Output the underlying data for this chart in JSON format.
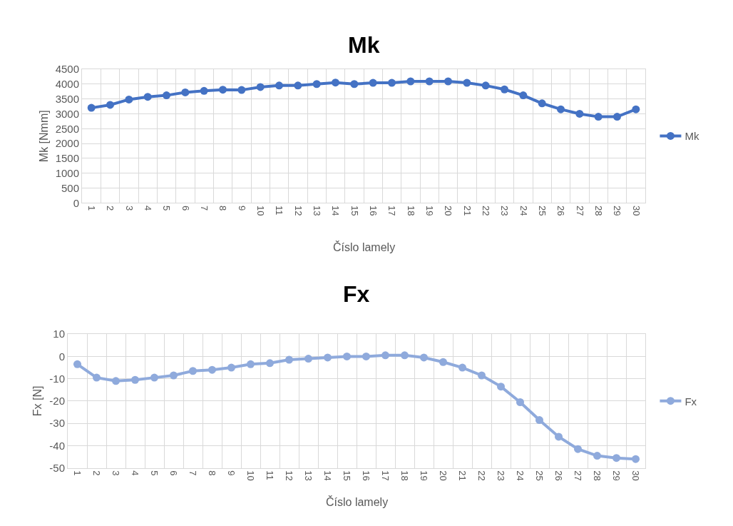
{
  "chart_data": [
    {
      "type": "line",
      "title": "Mk",
      "xlabel": "Číslo lamely",
      "ylabel": "Mk [Nmm]",
      "categories": [
        "1",
        "2",
        "3",
        "4",
        "5",
        "6",
        "7",
        "8",
        "9",
        "10",
        "11",
        "12",
        "13",
        "14",
        "15",
        "16",
        "17",
        "18",
        "19",
        "20",
        "21",
        "22",
        "23",
        "24",
        "25",
        "26",
        "27",
        "28",
        "29",
        "30"
      ],
      "series": [
        {
          "name": "Mk",
          "color": "#4472c4",
          "values": [
            3200,
            3300,
            3480,
            3570,
            3620,
            3720,
            3770,
            3810,
            3800,
            3900,
            3950,
            3950,
            4000,
            4050,
            4000,
            4040,
            4040,
            4090,
            4090,
            4090,
            4040,
            3950,
            3820,
            3620,
            3350,
            3150,
            3000,
            2900,
            2900,
            3150
          ]
        }
      ],
      "ylim": [
        0,
        4500
      ],
      "yticks": [
        0,
        500,
        1000,
        1500,
        2000,
        2500,
        3000,
        3500,
        4000,
        4500
      ],
      "grid": true,
      "legend": "right",
      "marker": "circle",
      "line_style": "solid"
    },
    {
      "type": "line",
      "title": "Fx",
      "xlabel": "Číslo lamely",
      "ylabel": "Fx [N]",
      "categories": [
        "1",
        "2",
        "3",
        "4",
        "5",
        "6",
        "7",
        "8",
        "9",
        "10",
        "11",
        "12",
        "13",
        "14",
        "15",
        "16",
        "17",
        "18",
        "19",
        "20",
        "21",
        "22",
        "23",
        "24",
        "25",
        "26",
        "27",
        "28",
        "29",
        "30"
      ],
      "series": [
        {
          "name": "Fx",
          "color": "#8faadc",
          "values": [
            -3.5,
            -9.5,
            -11,
            -10.5,
            -9.5,
            -8.5,
            -6.5,
            -6,
            -5,
            -3.5,
            -3,
            -1.5,
            -1,
            -0.5,
            0,
            0,
            0.5,
            0.5,
            -0.5,
            -2.5,
            -5,
            -8.5,
            -13.5,
            -20.5,
            -28.5,
            -36,
            -41.5,
            -44.5,
            -45.5,
            -46
          ]
        }
      ],
      "ylim": [
        -50,
        10
      ],
      "yticks": [
        -50,
        -40,
        -30,
        -20,
        -10,
        0,
        10
      ],
      "grid": true,
      "legend": "right",
      "marker": "circle",
      "line_style": "solid"
    }
  ]
}
